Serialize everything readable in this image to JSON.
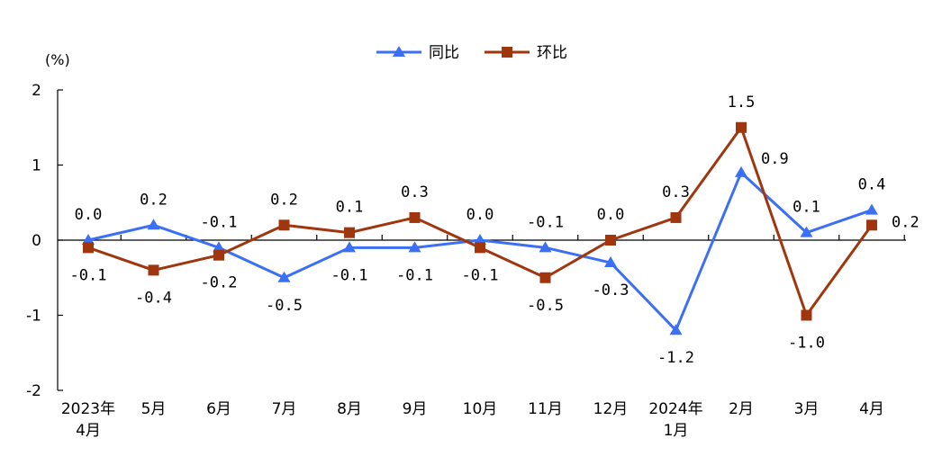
{
  "chart_data": {
    "type": "line",
    "unit_label": "(%)",
    "categories": [
      [
        "2023年",
        "4月"
      ],
      [
        "5月"
      ],
      [
        "6月"
      ],
      [
        "7月"
      ],
      [
        "8月"
      ],
      [
        "9月"
      ],
      [
        "10月"
      ],
      [
        "11月"
      ],
      [
        "12月"
      ],
      [
        "2024年",
        "1月"
      ],
      [
        "2月"
      ],
      [
        "3月"
      ],
      [
        "4月"
      ]
    ],
    "ylim": [
      -2,
      2
    ],
    "yticks": [
      "2",
      "1",
      "0",
      "-1",
      "-2"
    ],
    "ytick_values": [
      2,
      1,
      0,
      -1,
      -2
    ],
    "grid": false,
    "legend_position": "top-center",
    "series": [
      {
        "name": "同比",
        "color": "#3b6ff5",
        "marker": "triangle",
        "values": [
          0.0,
          0.2,
          -0.1,
          -0.5,
          -0.1,
          -0.1,
          0.0,
          -0.1,
          -0.3,
          -1.2,
          0.9,
          0.1,
          0.4
        ],
        "labels": [
          "0.0",
          "0.2",
          "-0.1",
          "-0.5",
          "-0.1",
          "-0.1",
          "0.0",
          "-0.1",
          "-0.3",
          "-1.2",
          "0.9",
          "0.1",
          "0.4"
        ]
      },
      {
        "name": "环比",
        "color": "#a0360e",
        "marker": "square",
        "values": [
          -0.1,
          -0.4,
          -0.2,
          0.2,
          0.1,
          0.3,
          -0.1,
          -0.5,
          0.0,
          0.3,
          1.5,
          -1.0,
          0.2
        ],
        "labels": [
          "-0.1",
          "-0.4",
          "-0.2",
          "0.2",
          "0.1",
          "0.3",
          "-0.1",
          "-0.5",
          "0.0",
          "0.3",
          "1.5",
          "-1.0",
          "0.2"
        ]
      }
    ]
  }
}
